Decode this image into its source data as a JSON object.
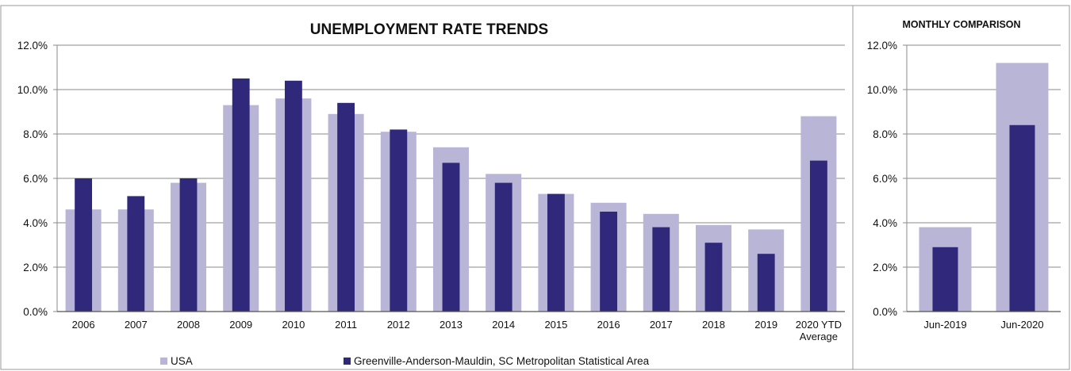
{
  "colors": {
    "usa": "#b8b5d6",
    "metro": "#30287a",
    "grid": "#8a8a8a",
    "frame": "#9a9a9a"
  },
  "chart_data": [
    {
      "type": "bar",
      "title": "UNEMPLOYMENT RATE TRENDS",
      "categories": [
        "2006",
        "2007",
        "2008",
        "2009",
        "2010",
        "2011",
        "2012",
        "2013",
        "2014",
        "2015",
        "2016",
        "2017",
        "2018",
        "2019",
        "2020 YTD Average"
      ],
      "category_lines": [
        [
          "2006"
        ],
        [
          "2007"
        ],
        [
          "2008"
        ],
        [
          "2009"
        ],
        [
          "2010"
        ],
        [
          "2011"
        ],
        [
          "2012"
        ],
        [
          "2013"
        ],
        [
          "2014"
        ],
        [
          "2015"
        ],
        [
          "2016"
        ],
        [
          "2017"
        ],
        [
          "2018"
        ],
        [
          "2019"
        ],
        [
          "2020 YTD",
          "Average"
        ]
      ],
      "series": [
        {
          "name": "USA",
          "values": [
            4.6,
            4.6,
            5.8,
            9.3,
            9.6,
            8.9,
            8.1,
            7.4,
            6.2,
            5.3,
            4.9,
            4.4,
            3.9,
            3.7,
            8.8
          ]
        },
        {
          "name": "Greenville-Anderson-Mauldin, SC Metropolitan Statistical Area",
          "values": [
            6.0,
            5.2,
            6.0,
            10.5,
            10.4,
            9.4,
            8.2,
            6.7,
            5.8,
            5.3,
            4.5,
            3.8,
            3.1,
            2.6,
            6.8
          ]
        }
      ],
      "ylim": [
        0,
        12
      ],
      "yticks": [
        "0.0%",
        "2.0%",
        "4.0%",
        "6.0%",
        "8.0%",
        "10.0%",
        "12.0%"
      ],
      "grid": true,
      "legend": "bottom"
    },
    {
      "type": "bar",
      "title": "MONTHLY COMPARISON",
      "categories": [
        "Jun-2019",
        "Jun-2020"
      ],
      "series": [
        {
          "name": "USA",
          "values": [
            3.8,
            11.2
          ]
        },
        {
          "name": "Greenville-Anderson-Mauldin, SC Metropolitan Statistical Area",
          "values": [
            2.9,
            8.4
          ]
        }
      ],
      "ylim": [
        0,
        12
      ],
      "yticks": [
        "0.0%",
        "2.0%",
        "4.0%",
        "6.0%",
        "8.0%",
        "10.0%",
        "12.0%"
      ],
      "grid": true
    }
  ]
}
